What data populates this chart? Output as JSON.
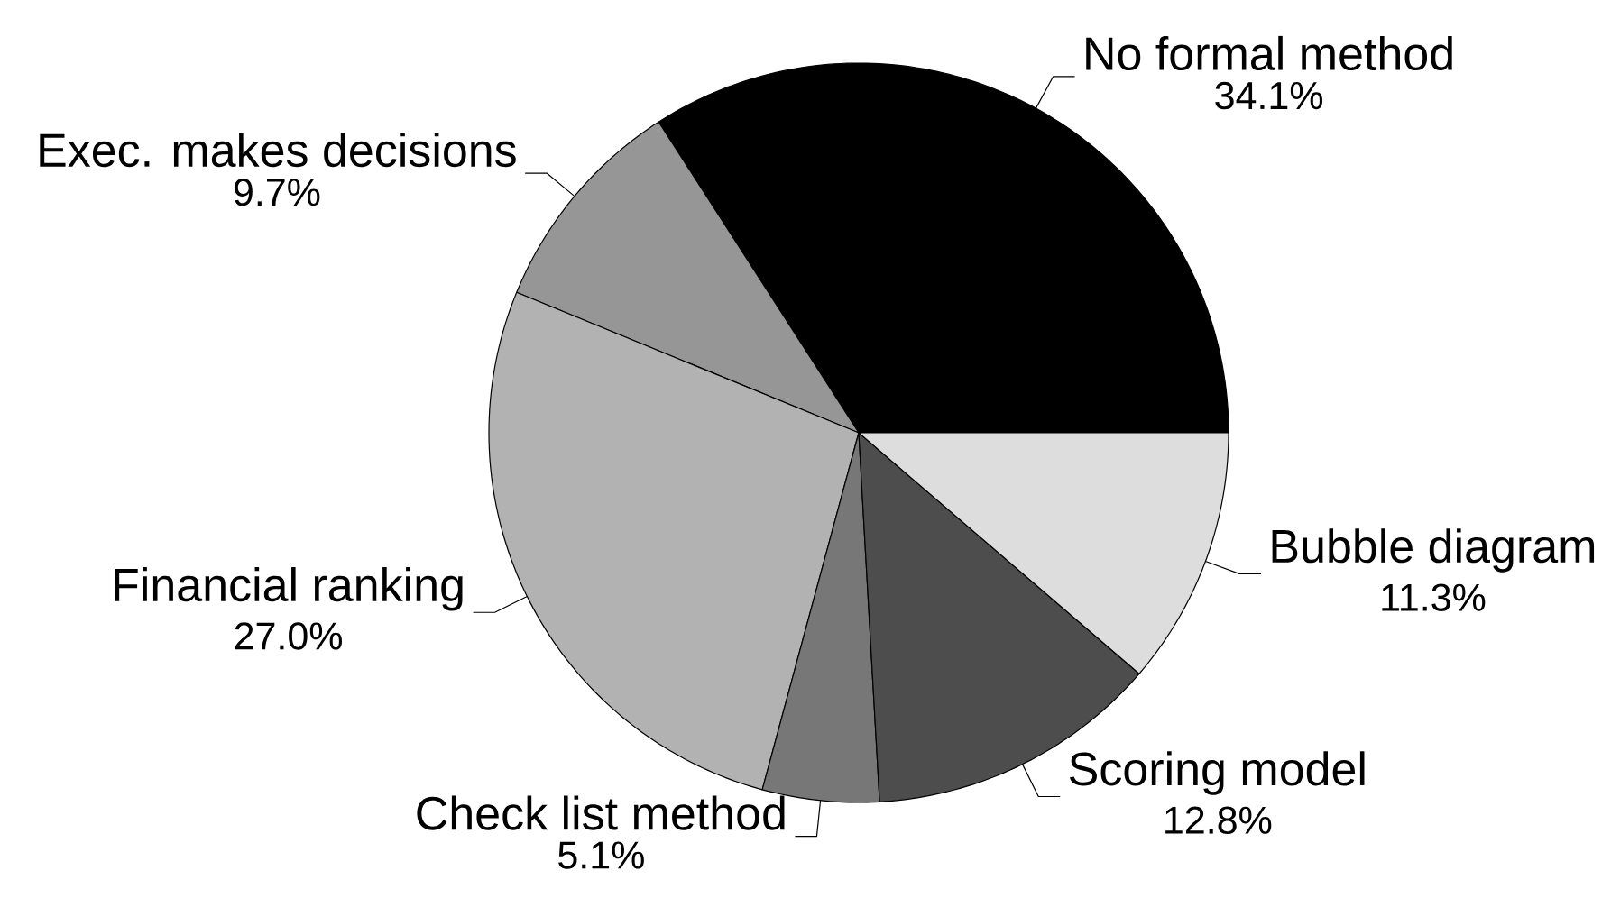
{
  "chart_data": {
    "type": "pie",
    "categories": [
      "No formal method",
      "Exec. makes decisions",
      "Financial ranking",
      "Check list method",
      "Scoring model",
      "Bubble diagram"
    ],
    "values": [
      34.1,
      9.7,
      27.0,
      5.1,
      12.8,
      11.3
    ],
    "colors": [
      "#000000",
      "#969696",
      "#b2b2b2",
      "#777777",
      "#4d4d4d",
      "#dddddd"
    ],
    "value_labels": [
      "34.1%",
      "9.7%",
      "27.0%",
      "5.1%",
      "12.8%",
      "11.3%"
    ]
  }
}
